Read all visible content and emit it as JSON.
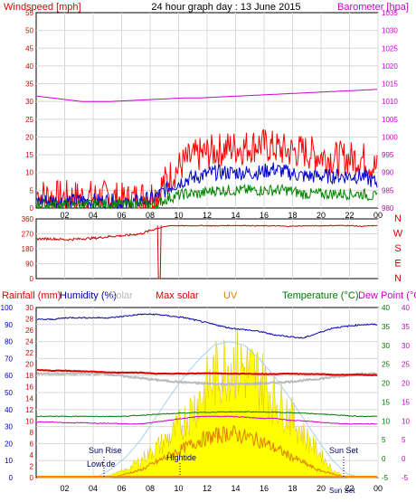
{
  "colors": {
    "wind": "#ff0000",
    "gust_avg": "#0000cc",
    "wind_low": "#008800",
    "baro": "#cc00cc",
    "dir": "#cc0000",
    "humidity": "#0000aa",
    "solar": "#ffff00",
    "solar_edge": "#e0c000",
    "maxsolar": "#a8d0f0",
    "uv": "#e08000",
    "temp": "#dd0000",
    "dew": "#cc00cc",
    "green": "#007700",
    "grey": "#bbbbbb"
  },
  "header": {
    "title": "24 hour graph day : 13 June 2015",
    "wind_label": "Windspeed [mph]",
    "baro_label": "Barometer [hpa]"
  },
  "wind_panel": {
    "left_ticks": [
      "55",
      "50",
      "45",
      "40",
      "35",
      "30",
      "25",
      "20",
      "15",
      "10",
      "5",
      "0"
    ],
    "right_ticks": [
      "1035",
      "1030",
      "1025",
      "1020",
      "1015",
      "1010",
      "1005",
      "1000",
      "995",
      "990",
      "985",
      "980"
    ],
    "x_ticks": [
      "02",
      "04",
      "06",
      "08",
      "10",
      "12",
      "14",
      "16",
      "18",
      "20",
      "22",
      "00"
    ]
  },
  "dir_panel": {
    "left_ticks": [
      "360",
      "270",
      "180",
      "90",
      "0"
    ],
    "compass": [
      "N",
      "W",
      "S",
      "E",
      "N"
    ]
  },
  "bottom_panel": {
    "legend": {
      "rain": "Rainfall (mm)",
      "humidity": "Humidity (%)",
      "solar": "Solar",
      "maxsolar": "Max solar",
      "uv": "UV",
      "temp": "Temperature (°C)",
      "dew": "Dew Point (°C)"
    },
    "hum_ticks": [
      "100",
      "90",
      "80",
      "70",
      "60",
      "50",
      "40",
      "30",
      "20",
      "10",
      "0"
    ],
    "rain_ticks": [
      "30",
      "28",
      "26",
      "24",
      "22",
      "20",
      "18",
      "16",
      "14",
      "12",
      "10",
      "8",
      "6",
      "4",
      "2",
      "0"
    ],
    "right_ticks1": [
      "40",
      "35",
      "30",
      "25",
      "20",
      "15",
      "10",
      "5",
      "0",
      "-5"
    ],
    "right_ticks2": [
      "40",
      "35",
      "30",
      "25",
      "20",
      "15",
      "10",
      "5",
      "0",
      "-5"
    ],
    "x_ticks": [
      "02",
      "04",
      "06",
      "08",
      "10",
      "12",
      "14",
      "16",
      "18",
      "20",
      "22",
      "00"
    ],
    "annotations": {
      "sunrise": "Sun Rise",
      "lowtide": "Lowt.de",
      "hightide": "Hightide",
      "sunset": "Sun Set",
      "sunset2": "Sun Set"
    }
  },
  "chart_data": [
    {
      "type": "line",
      "title": "24 hour graph day : 13 June 2015",
      "ylabel": "Windspeed [mph]",
      "ylim": [
        0,
        55
      ],
      "y2label": "Barometer [hpa]",
      "y2lim": [
        980,
        1035
      ],
      "x": [
        "01",
        "02",
        "03",
        "04",
        "05",
        "06",
        "07",
        "08",
        "09",
        "10",
        "11",
        "12",
        "13",
        "14",
        "15",
        "16",
        "17",
        "18",
        "19",
        "20",
        "21",
        "22",
        "23",
        "00"
      ],
      "series": [
        {
          "name": "Windspeed [mph]",
          "values": [
            4,
            3,
            3,
            3,
            3,
            3,
            2,
            3,
            4,
            9,
            13,
            15,
            16,
            17,
            17,
            18,
            17,
            16,
            16,
            15,
            14,
            14,
            14,
            11
          ]
        },
        {
          "name": "",
          "values": [
            2,
            2,
            2,
            2,
            2,
            2,
            1,
            2,
            3,
            6,
            8,
            9,
            10,
            10,
            10,
            10,
            11,
            10,
            9,
            9,
            9,
            9,
            9,
            7
          ]
        },
        {
          "name": "",
          "values": [
            1,
            1,
            1,
            1,
            1,
            1,
            1,
            1,
            1,
            3,
            4,
            4,
            5,
            5,
            5,
            5,
            5,
            5,
            4,
            4,
            4,
            4,
            4,
            3
          ]
        },
        {
          "name": "Barometer [hpa]",
          "values": [
            1011.5,
            1011,
            1010.5,
            1010,
            1010,
            1010,
            1010.2,
            1010.4,
            1010.6,
            1010.8,
            1011,
            1011,
            1011.2,
            1011.4,
            1011.6,
            1011.8,
            1012,
            1012.2,
            1012.4,
            1012.6,
            1012.8,
            1013,
            1013.2,
            1013.4
          ]
        }
      ]
    },
    {
      "type": "line",
      "ylim": [
        0,
        360
      ],
      "x": [
        "01",
        "02",
        "03",
        "04",
        "05",
        "06",
        "07",
        "08",
        "09",
        "10",
        "11",
        "12",
        "13",
        "14",
        "15",
        "16",
        "17",
        "18",
        "19",
        "20",
        "21",
        "22",
        "23",
        "00"
      ],
      "series": [
        {
          "name": "",
          "values": [
            240,
            240,
            235,
            240,
            245,
            255,
            260,
            270,
            300,
            320,
            318,
            320,
            318,
            320,
            320,
            318,
            318,
            315,
            318,
            318,
            320,
            320,
            315,
            320
          ]
        }
      ]
    },
    {
      "type": "line",
      "ylabel": "Humidity (%)",
      "ylim": [
        0,
        100
      ],
      "y2label": "Temperature (°C)",
      "y2lim": [
        -5,
        40
      ],
      "x": [
        "01",
        "02",
        "03",
        "04",
        "05",
        "06",
        "07",
        "08",
        "09",
        "10",
        "11",
        "12",
        "13",
        "14",
        "15",
        "16",
        "17",
        "18",
        "19",
        "20",
        "21",
        "22",
        "23",
        "00"
      ],
      "series": [
        {
          "name": "Humidity (%)",
          "values": [
            93,
            93,
            94,
            94,
            94,
            94,
            95,
            96,
            96,
            95,
            94,
            92,
            90,
            88,
            87,
            86,
            84,
            83,
            82,
            85,
            88,
            89,
            90,
            90
          ]
        },
        {
          "name": "Temperature (°C)",
          "values": [
            23.5,
            23.3,
            23.3,
            23.1,
            23,
            22.8,
            22.8,
            22.8,
            22.5,
            22.5,
            22.5,
            22.6,
            22.6,
            22.5,
            22.5,
            22.4,
            22.4,
            22.5,
            22.4,
            22.4,
            22.2,
            22.2,
            22.2,
            22.1
          ]
        },
        {
          "name": "Dew Point (°C)",
          "values": [
            10.5,
            10.5,
            10.3,
            10.3,
            10.2,
            10.2,
            10,
            10,
            10.5,
            11,
            11.5,
            12,
            12,
            12,
            11.8,
            11.5,
            11.5,
            11,
            10.8,
            10.5,
            10.2,
            10,
            10,
            10
          ]
        },
        {
          "name": "Solar",
          "values": [
            0,
            0,
            0,
            0,
            0,
            2,
            5,
            12,
            20,
            28,
            40,
            55,
            70,
            80,
            75,
            70,
            55,
            45,
            30,
            18,
            5,
            0,
            0,
            0
          ]
        },
        {
          "name": "Max solar",
          "values": [
            0,
            0,
            0,
            0,
            0,
            5,
            12,
            22,
            35,
            48,
            60,
            70,
            78,
            80,
            78,
            70,
            60,
            48,
            35,
            22,
            10,
            2,
            0,
            0
          ]
        },
        {
          "name": "UV",
          "values": [
            0,
            0,
            0,
            0,
            0,
            0,
            1,
            2,
            4,
            6,
            8,
            10,
            11,
            12,
            11,
            10,
            8,
            6,
            4,
            2,
            1,
            0,
            0,
            0
          ]
        }
      ]
    }
  ]
}
